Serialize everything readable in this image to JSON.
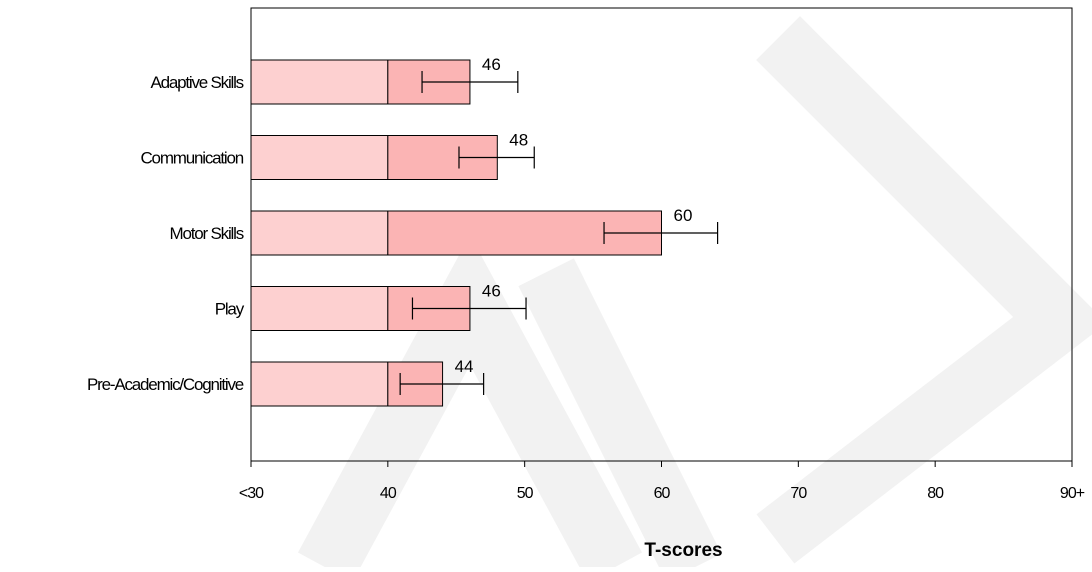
{
  "chart_data": {
    "type": "bar",
    "orientation": "horizontal",
    "categories": [
      "Adaptive Skills",
      "Communication",
      "Motor Skills",
      "Play",
      "Pre-Academic/Cognitive"
    ],
    "values": [
      46,
      48,
      60,
      46,
      44
    ],
    "baseline_value": 40,
    "error_bars": [
      {
        "low": 42.5,
        "high": 49.5
      },
      {
        "low": 45.2,
        "high": 50.7
      },
      {
        "low": 55.8,
        "high": 64.1
      },
      {
        "low": 41.8,
        "high": 50.1
      },
      {
        "low": 40.9,
        "high": 47.0
      }
    ],
    "data_labels": [
      "46",
      "48",
      "60",
      "46",
      "44"
    ],
    "xlim": [
      30,
      90
    ],
    "x_ticks": [
      30,
      40,
      50,
      60,
      70,
      80,
      90
    ],
    "x_tick_labels": [
      "<30",
      "40",
      "50",
      "60",
      "70",
      "80",
      "90+"
    ],
    "xlabel": "T-scores",
    "ylabel": "",
    "title": "",
    "grid": false,
    "legend": "none",
    "colors": {
      "below_baseline_fill": "#fdd0d0",
      "above_baseline_fill": "#fbb4b4",
      "outline": "#000000"
    }
  }
}
